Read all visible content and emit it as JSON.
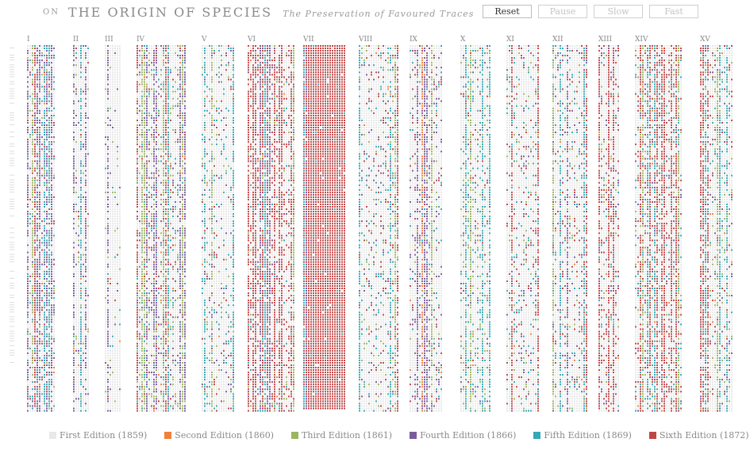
{
  "header": {
    "prefix": "ON",
    "title": "THE ORIGIN OF SPECIES",
    "subtitle": "The Preservation of Favoured Traces"
  },
  "controls": [
    {
      "label": "Reset",
      "active": true
    },
    {
      "label": "Pause",
      "active": false
    },
    {
      "label": "Slow",
      "active": false
    },
    {
      "label": "Fast",
      "active": false
    }
  ],
  "legend": [
    {
      "label": "First Edition (1859)",
      "color": "#e8e8e8"
    },
    {
      "label": "Second Edition (1860)",
      "color": "#f0803c"
    },
    {
      "label": "Third Edition (1861)",
      "color": "#9bb55e"
    },
    {
      "label": "Fourth Edition (1866)",
      "color": "#7a5c9c"
    },
    {
      "label": "Fifth Edition (1869)",
      "color": "#35a8b5"
    },
    {
      "label": "Sixth Edition (1872)",
      "color": "#c04545"
    }
  ],
  "chart_data": {
    "type": "heatmap",
    "chapters": [
      {
        "label": "I",
        "weights": [
          0.55,
          0.02,
          0.07,
          0.1,
          0.15,
          0.11
        ]
      },
      {
        "label": "II",
        "weights": [
          0.75,
          0.02,
          0.06,
          0.12,
          0.02,
          0.03
        ]
      },
      {
        "label": "III",
        "weights": [
          0.85,
          0.01,
          0.05,
          0.05,
          0.02,
          0.02
        ]
      },
      {
        "label": "IV",
        "weights": [
          0.5,
          0.03,
          0.15,
          0.1,
          0.1,
          0.12
        ]
      },
      {
        "label": "V",
        "weights": [
          0.65,
          0.02,
          0.05,
          0.08,
          0.12,
          0.08
        ]
      },
      {
        "label": "VI",
        "weights": [
          0.4,
          0.01,
          0.05,
          0.08,
          0.08,
          0.38
        ]
      },
      {
        "label": "VII",
        "weights": [
          0.02,
          0.0,
          0.0,
          0.02,
          0.01,
          0.95
        ]
      },
      {
        "label": "VIII",
        "weights": [
          0.6,
          0.01,
          0.08,
          0.1,
          0.1,
          0.11
        ]
      },
      {
        "label": "IX",
        "weights": [
          0.55,
          0.02,
          0.05,
          0.2,
          0.08,
          0.1
        ]
      },
      {
        "label": "X",
        "weights": [
          0.55,
          0.02,
          0.12,
          0.06,
          0.18,
          0.07
        ]
      },
      {
        "label": "XI",
        "weights": [
          0.6,
          0.01,
          0.08,
          0.08,
          0.12,
          0.11
        ]
      },
      {
        "label": "XII",
        "weights": [
          0.58,
          0.02,
          0.06,
          0.12,
          0.1,
          0.12
        ]
      },
      {
        "label": "XIII",
        "weights": [
          0.5,
          0.03,
          0.05,
          0.12,
          0.08,
          0.22
        ]
      },
      {
        "label": "XIV",
        "weights": [
          0.45,
          0.02,
          0.05,
          0.08,
          0.15,
          0.25
        ]
      },
      {
        "label": "XV",
        "weights": [
          0.6,
          0.02,
          0.1,
          0.08,
          0.1,
          0.1
        ]
      }
    ]
  }
}
